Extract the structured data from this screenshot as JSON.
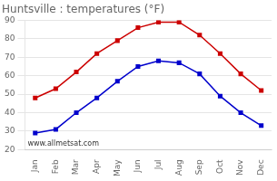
{
  "chart_data": {
    "type": "line",
    "title": "Huntsville : temperatures (°F)",
    "categories": [
      "Jan",
      "Feb",
      "Mar",
      "Apr",
      "May",
      "Jun",
      "Jul",
      "Aug",
      "Sep",
      "Oct",
      "Nov",
      "Dec"
    ],
    "series": [
      {
        "color": "#cc0000",
        "values": [
          48,
          53,
          62,
          72,
          79,
          86,
          89,
          89,
          82,
          72,
          61,
          52
        ]
      },
      {
        "color": "#0000cc",
        "values": [
          29,
          31,
          40,
          48,
          57,
          65,
          68,
          67,
          61,
          49,
          40,
          33
        ]
      }
    ],
    "marker": "square",
    "ylim": [
      20,
      90
    ],
    "yticks": [
      20,
      30,
      40,
      50,
      60,
      70,
      80,
      90
    ],
    "grid": true,
    "annotation": "www.allmetsat.com"
  }
}
